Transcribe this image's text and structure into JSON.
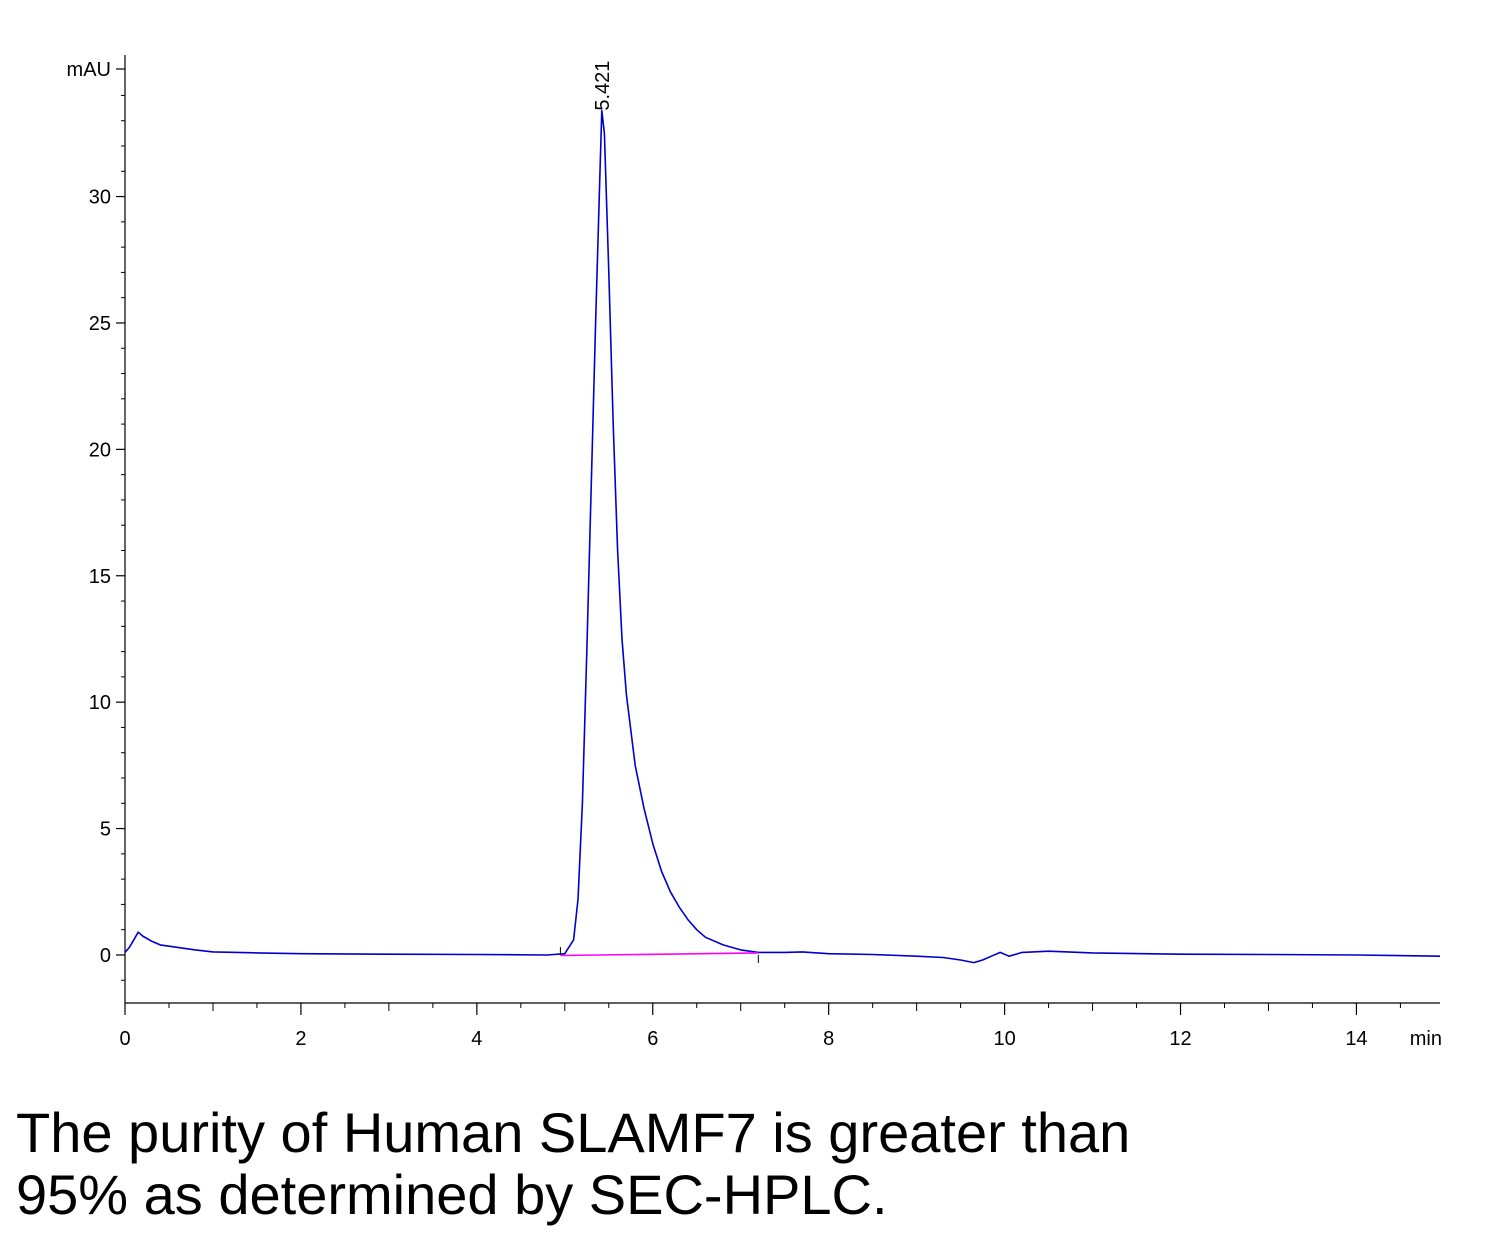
{
  "chart_data": {
    "type": "line",
    "ylabel": "mAU",
    "xlabel": "min",
    "xlim": [
      0,
      14.95
    ],
    "ylim": [
      -1.9,
      35.6
    ],
    "x_ticks": [
      0,
      2,
      4,
      6,
      8,
      10,
      12,
      14
    ],
    "y_ticks": [
      0,
      5,
      10,
      15,
      20,
      25,
      30
    ],
    "peak_labels": [
      {
        "x": 5.421,
        "y": 33.4,
        "text": "5.421"
      }
    ],
    "series": [
      {
        "color": "#0000cc",
        "x": [
          0.0,
          0.05,
          0.1,
          0.15,
          0.2,
          0.3,
          0.4,
          0.6,
          0.8,
          1.0,
          1.5,
          2.0,
          3.0,
          4.0,
          4.8,
          5.0,
          5.1,
          5.15,
          5.2,
          5.25,
          5.3,
          5.35,
          5.4,
          5.421,
          5.45,
          5.5,
          5.55,
          5.6,
          5.65,
          5.7,
          5.8,
          5.9,
          6.0,
          6.1,
          6.2,
          6.3,
          6.4,
          6.5,
          6.6,
          6.8,
          7.0,
          7.2,
          7.5,
          7.7,
          8.0,
          8.5,
          9.0,
          9.3,
          9.5,
          9.65,
          9.75,
          9.85,
          9.95,
          10.05,
          10.2,
          10.5,
          11.0,
          12.0,
          13.0,
          14.0,
          14.95
        ],
        "values": [
          0.1,
          0.3,
          0.6,
          0.9,
          0.75,
          0.55,
          0.4,
          0.3,
          0.2,
          0.12,
          0.08,
          0.05,
          0.03,
          0.02,
          0.0,
          0.05,
          0.6,
          2.2,
          6.0,
          12.0,
          18.5,
          25.0,
          31.0,
          33.4,
          32.5,
          27.0,
          21.0,
          16.0,
          12.5,
          10.3,
          7.5,
          5.8,
          4.4,
          3.3,
          2.5,
          1.9,
          1.4,
          1.0,
          0.7,
          0.4,
          0.2,
          0.1,
          0.1,
          0.12,
          0.05,
          0.02,
          -0.05,
          -0.1,
          -0.2,
          -0.3,
          -0.2,
          -0.05,
          0.1,
          -0.05,
          0.1,
          0.15,
          0.08,
          0.03,
          0.02,
          0.0,
          -0.05
        ]
      },
      {
        "color": "#ff00ff",
        "x": [
          4.95,
          7.2
        ],
        "values": [
          -0.02,
          0.08
        ]
      }
    ]
  },
  "caption": {
    "line1": "The purity of Human SLAMF7 is greater than",
    "line2": "95% as determined by SEC-HPLC."
  }
}
